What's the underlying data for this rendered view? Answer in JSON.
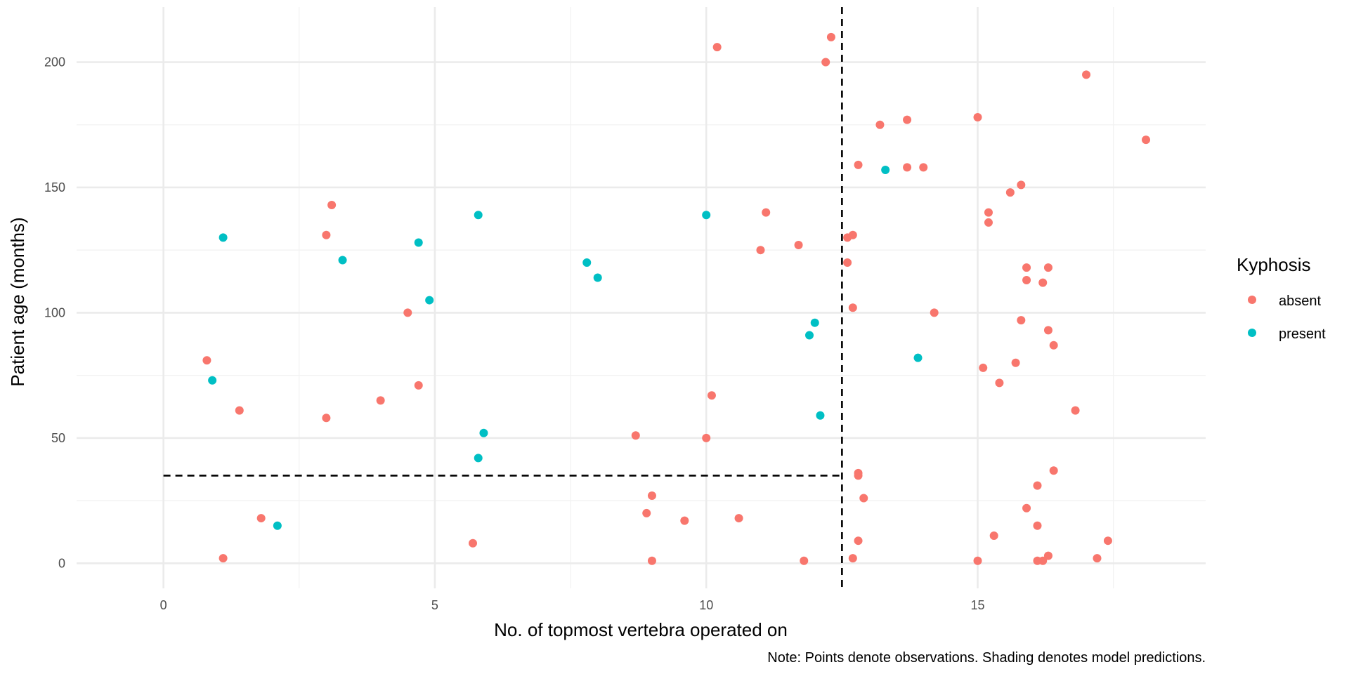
{
  "chart_data": {
    "type": "scatter",
    "xlabel": "No. of topmost vertebra operated on",
    "ylabel": "Patient age (months)",
    "caption": "Note: Points denote observations. Shading denotes model predictions.",
    "xlim": [
      -1.6,
      19.2
    ],
    "ylim": [
      -10,
      222
    ],
    "x_ticks": [
      0,
      5,
      10,
      15
    ],
    "y_ticks": [
      0,
      50,
      100,
      150,
      200
    ],
    "x_tick_labels": [
      "0",
      "5",
      "10",
      "15"
    ],
    "y_tick_labels": [
      "0",
      "50",
      "100",
      "150",
      "200"
    ],
    "grid": true,
    "legend": {
      "title": "Kyphosis",
      "position": "right",
      "entries": [
        {
          "label": "absent",
          "color": "#F8766D"
        },
        {
          "label": "present",
          "color": "#00BFC4"
        }
      ]
    },
    "reference_lines": [
      {
        "type": "vertical",
        "x": 12.5,
        "y_from": -10,
        "y_to": 222,
        "style": "dashed"
      },
      {
        "type": "horizontal",
        "y": 35,
        "x_from": 0,
        "x_to": 12.5,
        "style": "dashed"
      }
    ],
    "series": [
      {
        "name": "absent",
        "color": "#F8766D",
        "points": [
          [
            0.8,
            81
          ],
          [
            1.1,
            2
          ],
          [
            1.4,
            61
          ],
          [
            1.8,
            18
          ],
          [
            3.0,
            131
          ],
          [
            3.1,
            143
          ],
          [
            3.0,
            58
          ],
          [
            4.0,
            65
          ],
          [
            4.5,
            100
          ],
          [
            4.7,
            71
          ],
          [
            5.7,
            8
          ],
          [
            8.7,
            51
          ],
          [
            8.9,
            20
          ],
          [
            9.0,
            27
          ],
          [
            9.0,
            1
          ],
          [
            9.6,
            17
          ],
          [
            10.0,
            50
          ],
          [
            10.1,
            67
          ],
          [
            10.2,
            206
          ],
          [
            10.6,
            18
          ],
          [
            11.0,
            125
          ],
          [
            11.1,
            140
          ],
          [
            11.7,
            127
          ],
          [
            11.8,
            1
          ],
          [
            12.2,
            200
          ],
          [
            12.3,
            210
          ],
          [
            12.6,
            130
          ],
          [
            12.6,
            120
          ],
          [
            12.7,
            102
          ],
          [
            12.7,
            131
          ],
          [
            12.8,
            159
          ],
          [
            12.8,
            35
          ],
          [
            12.8,
            36
          ],
          [
            12.8,
            9
          ],
          [
            12.9,
            26
          ],
          [
            12.7,
            2
          ],
          [
            13.2,
            175
          ],
          [
            13.7,
            177
          ],
          [
            13.7,
            158
          ],
          [
            14.0,
            158
          ],
          [
            14.2,
            100
          ],
          [
            15.0,
            178
          ],
          [
            15.0,
            1
          ],
          [
            15.1,
            78
          ],
          [
            15.2,
            140
          ],
          [
            15.2,
            136
          ],
          [
            15.3,
            11
          ],
          [
            15.4,
            72
          ],
          [
            15.6,
            148
          ],
          [
            15.7,
            80
          ],
          [
            15.8,
            151
          ],
          [
            15.8,
            97
          ],
          [
            15.9,
            22
          ],
          [
            15.9,
            118
          ],
          [
            15.9,
            113
          ],
          [
            16.1,
            31
          ],
          [
            16.1,
            15
          ],
          [
            16.1,
            1
          ],
          [
            16.2,
            1
          ],
          [
            16.2,
            112
          ],
          [
            16.3,
            118
          ],
          [
            16.3,
            93
          ],
          [
            16.3,
            3
          ],
          [
            16.4,
            87
          ],
          [
            16.4,
            37
          ],
          [
            16.8,
            61
          ],
          [
            17.0,
            195
          ],
          [
            17.2,
            2
          ],
          [
            17.4,
            9
          ],
          [
            18.1,
            169
          ]
        ]
      },
      {
        "name": "present",
        "color": "#00BFC4",
        "points": [
          [
            0.9,
            73
          ],
          [
            1.1,
            130
          ],
          [
            2.1,
            15
          ],
          [
            3.3,
            121
          ],
          [
            4.7,
            128
          ],
          [
            4.9,
            105
          ],
          [
            5.8,
            42
          ],
          [
            5.8,
            139
          ],
          [
            5.9,
            52
          ],
          [
            7.8,
            120
          ],
          [
            8.0,
            114
          ],
          [
            10.0,
            139
          ],
          [
            11.9,
            91
          ],
          [
            12.0,
            96
          ],
          [
            12.1,
            59
          ],
          [
            13.3,
            157
          ],
          [
            13.9,
            82
          ]
        ]
      }
    ]
  }
}
